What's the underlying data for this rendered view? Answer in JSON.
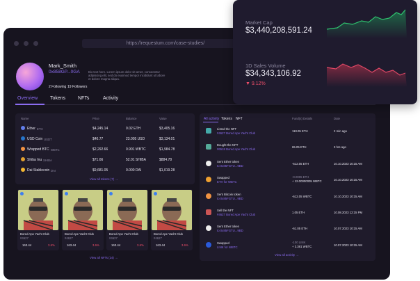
{
  "stats": {
    "market_cap_label": "Market Cap",
    "market_cap_value": "$3,440,208,591.24",
    "sales_label": "1D Sales Volume",
    "sales_value": "$34,343,106.92",
    "sales_change": "▼ 9.12%"
  },
  "browser": {
    "url": "https://requestum.com/case-studies/"
  },
  "profile": {
    "name": "Mark_Smith",
    "address": "0x858GP...0GA",
    "bio": "Bio text here. Lorem ipsum dolor sit amet, consectetur adipiscing elit, sed do eiusmod tempor incididunt ut labore et dolore magna aliqua.",
    "following": "2 Following",
    "followers": "19 Followers"
  },
  "tabs": [
    "Overview",
    "Tokens",
    "NFTs",
    "Activity"
  ],
  "tokens": {
    "headers": [
      "Name",
      "Price",
      "Balance",
      "Value"
    ],
    "rows": [
      {
        "name": "Ether",
        "symbol": "ETH",
        "price": "$4,245.14",
        "balance": "0.02 ETH",
        "value": "$3,405.16"
      },
      {
        "name": "USD Coin",
        "symbol": "USDT",
        "price": "$40.77",
        "balance": "23.005 USD",
        "value": "$3,134.01"
      },
      {
        "name": "Wrapped BTC",
        "symbol": "WBTC",
        "price": "$2,292.66",
        "balance": "0.901 WBTC",
        "value": "$1,984.78"
      },
      {
        "name": "Shiba Inu",
        "symbol": "SHIBA",
        "price": "$71.66",
        "balance": "52.01 SHIBA",
        "value": "$884.78"
      },
      {
        "name": "Dai Stablecoin",
        "symbol": "DAI",
        "price": "$9,681.05",
        "balance": "0.000 DAI",
        "value": "$1,019.28"
      }
    ],
    "view_all": "View all tokens (7) →"
  },
  "nfts": {
    "cards": [
      {
        "title": "Bored Ape Yacht Club",
        "id": "#4627",
        "price": "163.44",
        "change": "3.6%"
      },
      {
        "title": "Bored Ape Yacht Club",
        "id": "#4627",
        "price": "163.44",
        "change": "3.6%"
      },
      {
        "title": "Bored Ape Yacht Club",
        "id": "#4627",
        "price": "163.44",
        "change": "3.6%"
      },
      {
        "title": "Bored Ape Yacht Club",
        "id": "#4627",
        "price": "163.44",
        "change": "3.6%"
      }
    ],
    "view_all": "View all NFTs (24) →"
  },
  "activity": {
    "tabs": [
      "All activity",
      "Tokens",
      "NFT"
    ],
    "headers": [
      "Fund(s) Details",
      "Date"
    ],
    "rows": [
      {
        "action": "Listed the NFT",
        "detail": "#4627 Bored Ape Yacht Club",
        "amount": "110.05 ETH",
        "date": "2 min ago"
      },
      {
        "action": "Bought the NFT",
        "detail": "#6518 Bored Ape Yacht Club",
        "amount": "65.05 ETH",
        "date": "3 hrs ago"
      },
      {
        "action": "Sent Ether token",
        "detail": "to 0x85FGTU...9BD",
        "amount": "-612.05 ETH",
        "date": "10.10.2023 10:15 AM"
      },
      {
        "action": "Swapped",
        "detail": "ETH for WBTC",
        "amount": "-0.0005 ETH",
        "amount2": "+ 12.00000005 WBTC",
        "date": "10.10.2023 10:15 AM"
      },
      {
        "action": "Sent Bitcoin token",
        "detail": "to 0x85FGTU...9BD",
        "amount": "-612.05 WBTC",
        "date": "10.10.2023 10:15 AM"
      },
      {
        "action": "Sell the NFT",
        "detail": "#4627 Bored Ape Yacht Club",
        "amount": "1.05 ETH",
        "date": "10.08.2023 12:15 PM"
      },
      {
        "action": "Sent Ether token",
        "detail": "to 0x85FGTU...9BD",
        "amount": "-61.05 ETH",
        "date": "10.07.2023 10:15 AM"
      },
      {
        "action": "Swapped",
        "detail": "LINK for WBTC",
        "amount": "-100 LINK",
        "amount2": "+ 3.381 WBTC",
        "date": "10.07.2023 10:15 AM"
      }
    ],
    "view_all": "View all activity →"
  }
}
